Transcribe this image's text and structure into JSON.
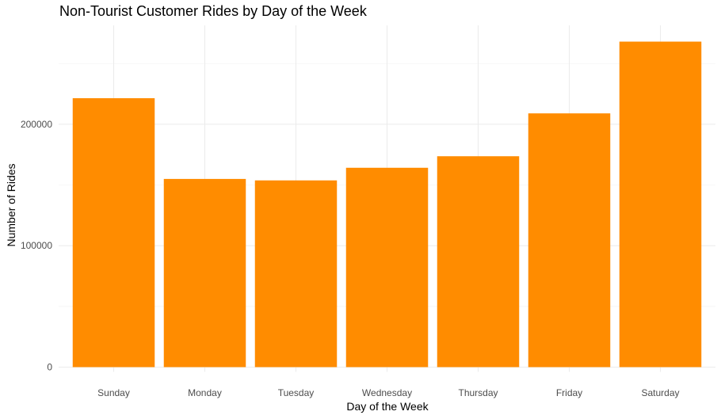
{
  "chart_data": {
    "type": "bar",
    "title": "Non-Tourist Customer Rides by Day of the Week",
    "xlabel": "Day of the Week",
    "ylabel": "Number of Rides",
    "categories": [
      "Sunday",
      "Monday",
      "Tuesday",
      "Wednesday",
      "Thursday",
      "Friday",
      "Saturday"
    ],
    "values": [
      221500,
      155000,
      153800,
      164200,
      173700,
      209000,
      268100
    ],
    "yticks": [
      0,
      100000,
      200000
    ],
    "ytick_labels": [
      "0",
      "100000",
      "200000"
    ],
    "ylim": [
      0,
      281500
    ],
    "grid": true,
    "legend": "none",
    "bar_color": "#FF8C00"
  }
}
